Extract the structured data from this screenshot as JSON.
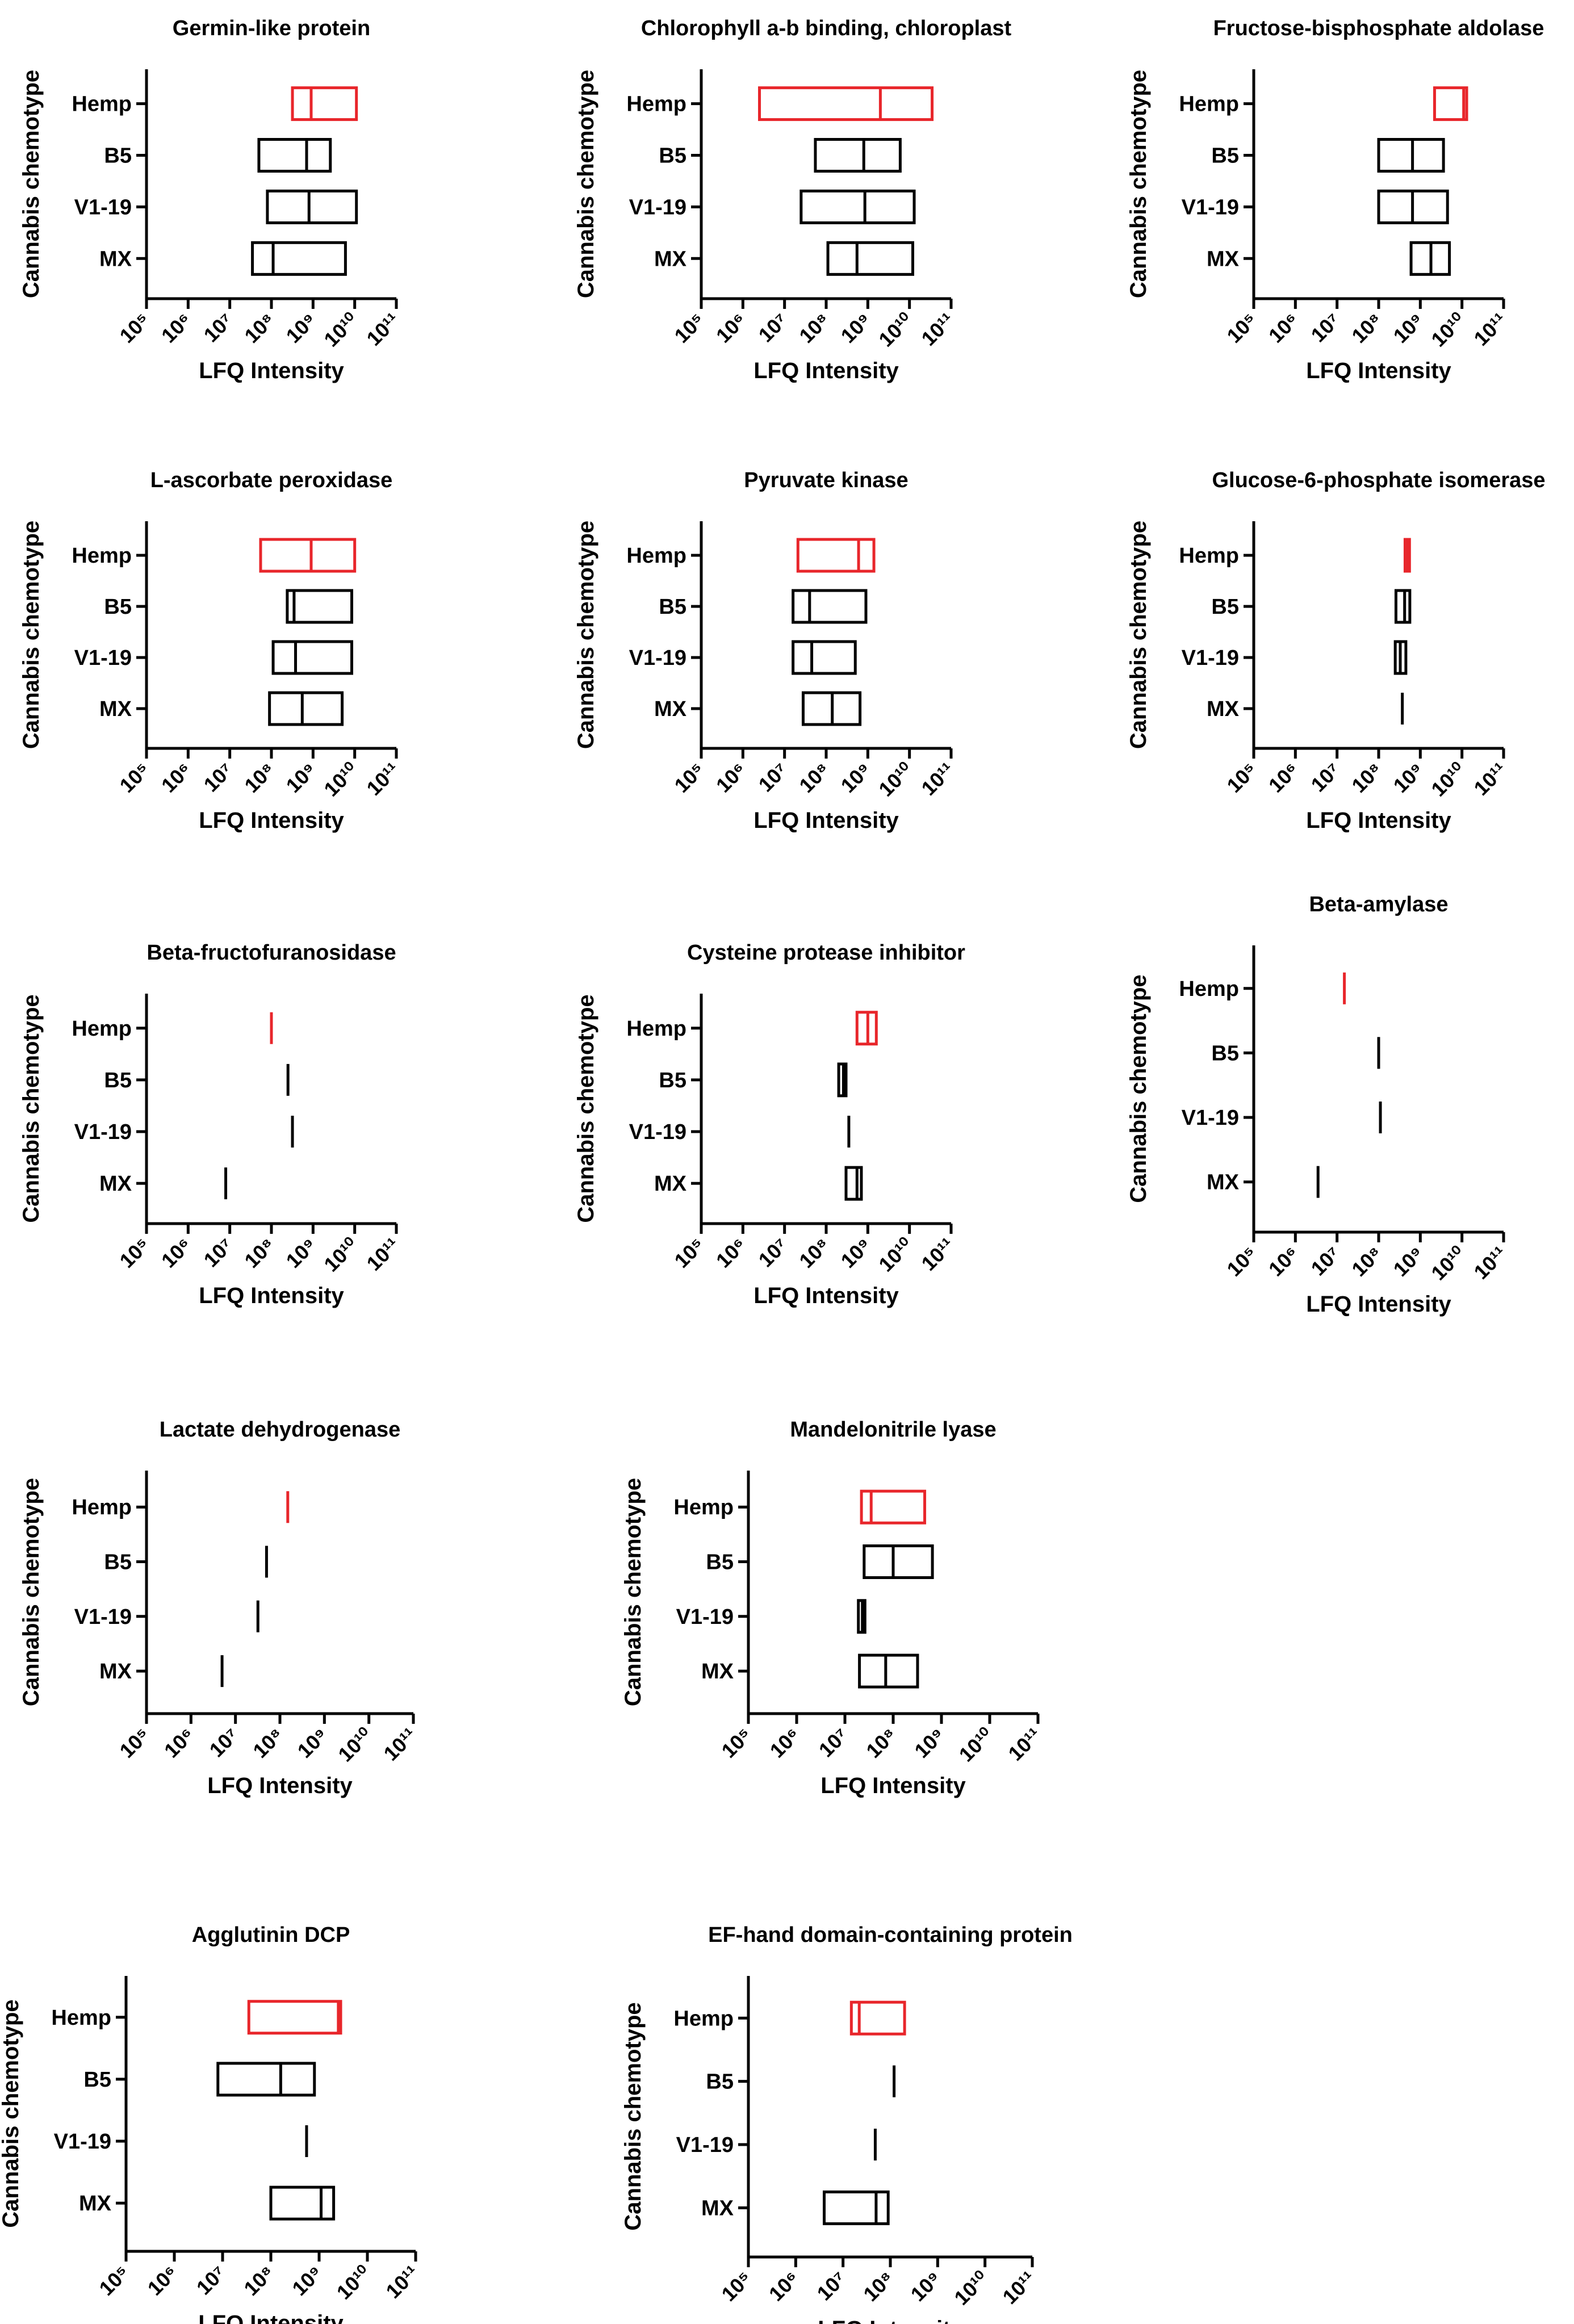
{
  "colors": {
    "hemp": "#e8262b",
    "other": "#000000",
    "axis": "#000000"
  },
  "chart_data": [
    {
      "type": "box",
      "title": "Germin-like protein",
      "xlabel": "LFQ Intensity",
      "ylabel": "Cannabis chemotype",
      "xscale": "log",
      "xlim": [
        100000.0,
        100000000000.0
      ],
      "xticks": [
        "10⁵",
        "10⁶",
        "10⁷",
        "10⁸",
        "10⁹",
        "10¹⁰",
        "10¹¹"
      ],
      "categories": [
        "Hemp",
        "B5",
        "V1-19",
        "MX"
      ],
      "boxes": [
        {
          "group": "Hemp",
          "min": 320000000.0,
          "median": 900000000.0,
          "max": 11000000000.0
        },
        {
          "group": "B5",
          "min": 50000000.0,
          "median": 700000000.0,
          "max": 2600000000.0
        },
        {
          "group": "V1-19",
          "min": 80000000.0,
          "median": 800000000.0,
          "max": 11000000000.0
        },
        {
          "group": "MX",
          "min": 35000000.0,
          "median": 110000000.0,
          "max": 6000000000.0
        }
      ]
    },
    {
      "type": "box",
      "title": "Chlorophyll a-b binding, chloroplast",
      "xlabel": "LFQ Intensity",
      "ylabel": "Cannabis chemotype",
      "xscale": "log",
      "xlim": [
        100000.0,
        100000000000.0
      ],
      "xticks": [
        "10⁵",
        "10⁶",
        "10⁷",
        "10⁸",
        "10⁹",
        "10¹⁰",
        "10¹¹"
      ],
      "categories": [
        "Hemp",
        "B5",
        "V1-19",
        "MX"
      ],
      "boxes": [
        {
          "group": "Hemp",
          "min": 2500000.0,
          "median": 2000000000.0,
          "max": 35000000000.0
        },
        {
          "group": "B5",
          "min": 55000000.0,
          "median": 800000000.0,
          "max": 6000000000.0
        },
        {
          "group": "V1-19",
          "min": 25000000.0,
          "median": 850000000.0,
          "max": 13000000000.0
        },
        {
          "group": "MX",
          "min": 110000000.0,
          "median": 550000000.0,
          "max": 12000000000.0
        }
      ]
    },
    {
      "type": "box",
      "title": "Fructose-bisphosphate aldolase",
      "xlabel": "LFQ Intensity",
      "ylabel": "Cannabis chemotype",
      "xscale": "log",
      "xlim": [
        100000.0,
        100000000000.0
      ],
      "xticks": [
        "10⁵",
        "10⁶",
        "10⁷",
        "10⁸",
        "10⁹",
        "10¹⁰",
        "10¹¹"
      ],
      "categories": [
        "Hemp",
        "B5",
        "V1-19",
        "MX"
      ],
      "boxes": [
        {
          "group": "Hemp",
          "min": 2200000000.0,
          "median": 11000000000.0,
          "max": 13000000000.0
        },
        {
          "group": "B5",
          "min": 100000000.0,
          "median": 650000000.0,
          "max": 3600000000.0
        },
        {
          "group": "V1-19",
          "min": 100000000.0,
          "median": 650000000.0,
          "max": 4500000000.0
        },
        {
          "group": "MX",
          "min": 600000000.0,
          "median": 1800000000.0,
          "max": 5000000000.0
        }
      ]
    },
    {
      "type": "box",
      "title": "L-ascorbate peroxidase",
      "xlabel": "LFQ Intensity",
      "ylabel": "Cannabis chemotype",
      "xscale": "log",
      "xlim": [
        100000.0,
        100000000000.0
      ],
      "xticks": [
        "10⁵",
        "10⁶",
        "10⁷",
        "10⁸",
        "10⁹",
        "10¹⁰",
        "10¹¹"
      ],
      "categories": [
        "Hemp",
        "B5",
        "V1-19",
        "MX"
      ],
      "boxes": [
        {
          "group": "Hemp",
          "min": 55000000.0,
          "median": 900000000.0,
          "max": 10000000000.0
        },
        {
          "group": "B5",
          "min": 240000000.0,
          "median": 350000000.0,
          "max": 8500000000.0
        },
        {
          "group": "V1-19",
          "min": 110000000.0,
          "median": 380000000.0,
          "max": 8500000000.0
        },
        {
          "group": "MX",
          "min": 90000000.0,
          "median": 550000000.0,
          "max": 5000000000.0
        }
      ]
    },
    {
      "type": "box",
      "title": "Pyruvate kinase",
      "xlabel": "LFQ Intensity",
      "ylabel": "Cannabis chemotype",
      "xscale": "log",
      "xlim": [
        100000.0,
        100000000000.0
      ],
      "xticks": [
        "10⁵",
        "10⁶",
        "10⁷",
        "10⁸",
        "10⁹",
        "10¹⁰",
        "10¹¹"
      ],
      "categories": [
        "Hemp",
        "B5",
        "V1-19",
        "MX"
      ],
      "boxes": [
        {
          "group": "Hemp",
          "min": 21000000.0,
          "median": 600000000.0,
          "max": 1400000000.0
        },
        {
          "group": "B5",
          "min": 16000000.0,
          "median": 40000000.0,
          "max": 900000000.0
        },
        {
          "group": "V1-19",
          "min": 16000000.0,
          "median": 45000000.0,
          "max": 500000000.0
        },
        {
          "group": "MX",
          "min": 28000000.0,
          "median": 140000000.0,
          "max": 650000000.0
        }
      ]
    },
    {
      "type": "box",
      "title": "Glucose-6-phosphate isomerase",
      "xlabel": "LFQ Intensity",
      "ylabel": "Cannabis chemotype",
      "xscale": "log",
      "xlim": [
        100000.0,
        100000000000.0
      ],
      "xticks": [
        "10⁵",
        "10⁶",
        "10⁷",
        "10⁸",
        "10⁹",
        "10¹⁰",
        "10¹¹"
      ],
      "categories": [
        "Hemp",
        "B5",
        "V1-19",
        "MX"
      ],
      "boxes": [
        {
          "group": "Hemp",
          "min": 430000000.0,
          "median": 500000000.0,
          "max": 550000000.0
        },
        {
          "group": "B5",
          "min": 260000000.0,
          "median": 420000000.0,
          "max": 560000000.0
        },
        {
          "group": "V1-19",
          "min": 250000000.0,
          "median": 330000000.0,
          "max": 450000000.0
        },
        {
          "group": "MX",
          "min": 370000000.0,
          "median": 370000000.0,
          "max": 370000000.0
        }
      ]
    },
    {
      "type": "box",
      "title": "Beta-fructofuranosidase",
      "xlabel": "LFQ Intensity",
      "ylabel": "Cannabis chemotype",
      "xscale": "log",
      "xlim": [
        100000.0,
        100000000000.0
      ],
      "xticks": [
        "10⁵",
        "10⁶",
        "10⁷",
        "10⁸",
        "10⁹",
        "10¹⁰",
        "10¹¹"
      ],
      "categories": [
        "Hemp",
        "B5",
        "V1-19",
        "MX"
      ],
      "boxes": [
        {
          "group": "Hemp",
          "min": 100000000.0,
          "median": 100000000.0,
          "max": 100000000.0
        },
        {
          "group": "B5",
          "min": 250000000.0,
          "median": 250000000.0,
          "max": 250000000.0
        },
        {
          "group": "V1-19",
          "min": 320000000.0,
          "median": 320000000.0,
          "max": 320000000.0
        },
        {
          "group": "MX",
          "min": 8000000.0,
          "median": 8000000.0,
          "max": 8000000.0
        }
      ]
    },
    {
      "type": "box",
      "title": "Cysteine protease inhibitor",
      "xlabel": "LFQ Intensity",
      "ylabel": "Cannabis chemotype",
      "xscale": "log",
      "xlim": [
        100000.0,
        100000000000.0
      ],
      "xticks": [
        "10⁵",
        "10⁶",
        "10⁷",
        "10⁸",
        "10⁹",
        "10¹⁰",
        "10¹¹"
      ],
      "categories": [
        "Hemp",
        "B5",
        "V1-19",
        "MX"
      ],
      "boxes": [
        {
          "group": "Hemp",
          "min": 550000000.0,
          "median": 1000000000.0,
          "max": 1600000000.0
        },
        {
          "group": "B5",
          "min": 200000000.0,
          "median": 260000000.0,
          "max": 300000000.0
        },
        {
          "group": "V1-19",
          "min": 350000000.0,
          "median": 350000000.0,
          "max": 350000000.0
        },
        {
          "group": "MX",
          "min": 300000000.0,
          "median": 550000000.0,
          "max": 700000000.0
        }
      ]
    },
    {
      "type": "box",
      "title": "Beta-amylase",
      "xlabel": "LFQ Intensity",
      "ylabel": "Cannabis chemotype",
      "xscale": "log",
      "xlim": [
        100000.0,
        100000000000.0
      ],
      "xticks": [
        "10⁵",
        "10⁶",
        "10⁷",
        "10⁸",
        "10⁹",
        "10¹⁰",
        "10¹¹"
      ],
      "categories": [
        "Hemp",
        "B5",
        "V1-19",
        "MX"
      ],
      "boxes": [
        {
          "group": "Hemp",
          "min": 15000000.0,
          "median": 15000000.0,
          "max": 15000000.0
        },
        {
          "group": "B5",
          "min": 100000000.0,
          "median": 100000000.0,
          "max": 100000000.0
        },
        {
          "group": "V1-19",
          "min": 110000000.0,
          "median": 110000000.0,
          "max": 110000000.0
        },
        {
          "group": "MX",
          "min": 3500000.0,
          "median": 3500000.0,
          "max": 3500000.0
        }
      ]
    },
    {
      "type": "box",
      "title": "Lactate dehydrogenase",
      "xlabel": "LFQ Intensity",
      "ylabel": "Cannabis chemotype",
      "xscale": "log",
      "xlim": [
        100000.0,
        100000000000.0
      ],
      "xticks": [
        "10⁵",
        "10⁶",
        "10⁷",
        "10⁸",
        "10⁹",
        "10¹⁰",
        "10¹¹"
      ],
      "categories": [
        "Hemp",
        "B5",
        "V1-19",
        "MX"
      ],
      "boxes": [
        {
          "group": "Hemp",
          "min": 150000000.0,
          "median": 150000000.0,
          "max": 150000000.0
        },
        {
          "group": "B5",
          "min": 50000000.0,
          "median": 50000000.0,
          "max": 50000000.0
        },
        {
          "group": "V1-19",
          "min": 32000000.0,
          "median": 32000000.0,
          "max": 32000000.0
        },
        {
          "group": "MX",
          "min": 5000000.0,
          "median": 5000000.0,
          "max": 5000000.0
        }
      ]
    },
    {
      "type": "box",
      "title": "Mandelonitrile lyase",
      "xlabel": "LFQ Intensity",
      "ylabel": "Cannabis chemotype",
      "xscale": "log",
      "xlim": [
        100000.0,
        100000000000.0
      ],
      "xticks": [
        "10⁵",
        "10⁶",
        "10⁷",
        "10⁸",
        "10⁹",
        "10¹⁰",
        "10¹¹"
      ],
      "categories": [
        "Hemp",
        "B5",
        "V1-19",
        "MX"
      ],
      "boxes": [
        {
          "group": "Hemp",
          "min": 22000000.0,
          "median": 35000000.0,
          "max": 450000000.0
        },
        {
          "group": "B5",
          "min": 25000000.0,
          "median": 100000000.0,
          "max": 650000000.0
        },
        {
          "group": "V1-19",
          "min": 19000000.0,
          "median": 23000000.0,
          "max": 26000000.0
        },
        {
          "group": "MX",
          "min": 20000000.0,
          "median": 70000000.0,
          "max": 320000000.0
        }
      ]
    },
    {
      "type": "box",
      "title": "Agglutinin DCP",
      "xlabel": "LFQ Intensity",
      "ylabel": "Cannabis chemotype",
      "xscale": "log",
      "xlim": [
        100000.0,
        100000000000.0
      ],
      "xticks": [
        "10⁵",
        "10⁶",
        "10⁷",
        "10⁸",
        "10⁹",
        "10¹⁰",
        "10¹¹"
      ],
      "categories": [
        "Hemp",
        "B5",
        "V1-19",
        "MX"
      ],
      "boxes": [
        {
          "group": "Hemp",
          "min": 35000000.0,
          "median": 2500000000.0,
          "max": 2800000000.0
        },
        {
          "group": "B5",
          "min": 8000000.0,
          "median": 160000000.0,
          "max": 800000000.0
        },
        {
          "group": "V1-19",
          "min": 550000000.0,
          "median": 550000000.0,
          "max": 550000000.0
        },
        {
          "group": "MX",
          "min": 100000000.0,
          "median": 1100000000.0,
          "max": 2000000000.0
        }
      ]
    },
    {
      "type": "box",
      "title": "EF-hand domain-containing protein",
      "xlabel": "LFQ Intensity",
      "ylabel": "Cannabis chemotype",
      "xscale": "log",
      "xlim": [
        100000.0,
        100000000000.0
      ],
      "xticks": [
        "10⁵",
        "10⁶",
        "10⁷",
        "10⁸",
        "10⁹",
        "10¹⁰",
        "10¹¹"
      ],
      "categories": [
        "Hemp",
        "B5",
        "V1-19",
        "MX"
      ],
      "boxes": [
        {
          "group": "Hemp",
          "min": 15000000.0,
          "median": 22000000.0,
          "max": 200000000.0
        },
        {
          "group": "B5",
          "min": 120000000.0,
          "median": 120000000.0,
          "max": 120000000.0
        },
        {
          "group": "V1-19",
          "min": 48000000.0,
          "median": 48000000.0,
          "max": 48000000.0
        },
        {
          "group": "MX",
          "min": 4000000.0,
          "median": 50000000.0,
          "max": 90000000.0
        }
      ]
    }
  ]
}
